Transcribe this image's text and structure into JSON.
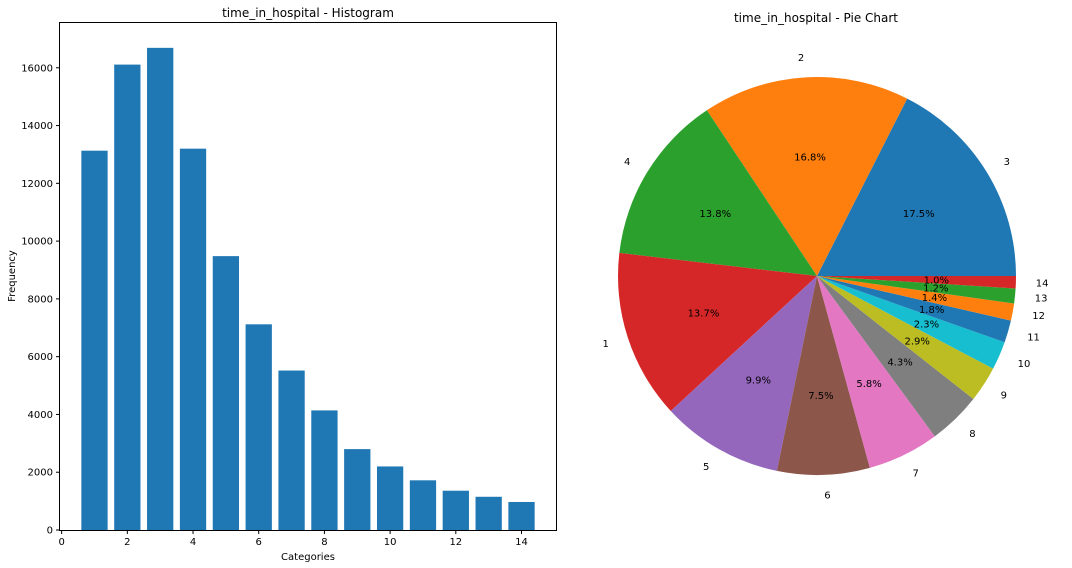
{
  "chart_data": [
    {
      "type": "bar",
      "title": "time_in_hospital - Histogram",
      "xlabel": "Categories",
      "ylabel": "Frequency",
      "xlim": [
        -0.05,
        15.05
      ],
      "ylim": [
        0,
        17550
      ],
      "xticks": [
        0,
        2,
        4,
        6,
        8,
        10,
        12,
        14
      ],
      "yticks": [
        0,
        2000,
        4000,
        6000,
        8000,
        10000,
        12000,
        14000,
        16000
      ],
      "categories": [
        1,
        2,
        3,
        4,
        5,
        6,
        7,
        8,
        9,
        10,
        11,
        12,
        13,
        14
      ],
      "values": [
        13130,
        16110,
        16690,
        13200,
        9480,
        7120,
        5520,
        4140,
        2800,
        2200,
        1720,
        1360,
        1150,
        970
      ],
      "bar_color": "#1f77b4"
    },
    {
      "type": "pie",
      "title": "time_in_hospital - Pie Chart",
      "labels": [
        "3",
        "2",
        "4",
        "1",
        "5",
        "6",
        "7",
        "8",
        "9",
        "10",
        "11",
        "12",
        "13",
        "14"
      ],
      "values": [
        17.5,
        16.8,
        13.8,
        13.7,
        9.9,
        7.5,
        5.8,
        4.3,
        2.9,
        2.3,
        1.8,
        1.4,
        1.2,
        1.0
      ],
      "pct_labels": [
        "17.5%",
        "16.8%",
        "13.8%",
        "13.7%",
        "9.9%",
        "7.5%",
        "5.8%",
        "4.3%",
        "2.9%",
        "2.3%",
        "1.8%",
        "1.4%",
        "1.2%",
        "1.0%"
      ],
      "colors": [
        "#1f77b4",
        "#ff7f0e",
        "#2ca02c",
        "#d62728",
        "#9467bd",
        "#8c564b",
        "#e377c2",
        "#7f7f7f",
        "#bcbd22",
        "#17becf",
        "#1f77b4",
        "#ff7f0e",
        "#2ca02c",
        "#d62728"
      ],
      "start_angle_deg": 0,
      "direction": "counterclockwise"
    }
  ]
}
